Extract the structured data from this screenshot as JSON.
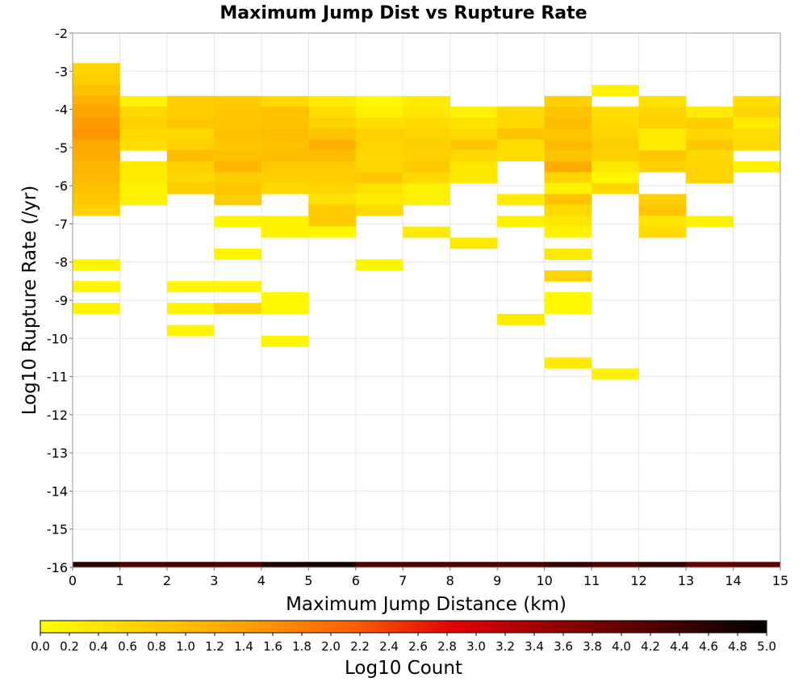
{
  "chart_data": {
    "type": "heatmap",
    "title": "Maximum Jump Dist vs Rupture Rate",
    "xlabel": "Maximum Jump Distance (km)",
    "ylabel": "Log10 Rupture Rate (/yr)",
    "xlim": [
      0,
      15
    ],
    "ylim": [
      -16,
      -2
    ],
    "x_ticks": [
      0,
      1,
      2,
      3,
      4,
      5,
      6,
      7,
      8,
      9,
      10,
      11,
      12,
      13,
      14,
      15
    ],
    "y_ticks": [
      -2,
      -3,
      -4,
      -5,
      -6,
      -7,
      -8,
      -9,
      -10,
      -11,
      -12,
      -13,
      -14,
      -15,
      -16
    ],
    "x_bin_width": 1,
    "y_bin_height": 0.286,
    "grid": true,
    "colorbar": {
      "label": "Log10 Count",
      "min": 0.0,
      "max": 5.0,
      "position": "bottom",
      "ticks": [
        "0.0",
        "0.2",
        "0.4",
        "0.6",
        "0.8",
        "1.0",
        "1.2",
        "1.4",
        "1.6",
        "1.8",
        "2.0",
        "2.2",
        "2.4",
        "2.6",
        "2.8",
        "3.0",
        "3.2",
        "3.4",
        "3.6",
        "3.8",
        "4.0",
        "4.2",
        "4.4",
        "4.6",
        "4.8",
        "5.0"
      ],
      "colors": [
        "#ffff00",
        "#ffd000",
        "#ffa000",
        "#ff6000",
        "#e00000",
        "#900000",
        "#4a0000",
        "#000000"
      ]
    },
    "cells": [
      {
        "x": 0,
        "y": -2.93,
        "v": 0.65
      },
      {
        "x": 0,
        "y": -3.21,
        "v": 0.75
      },
      {
        "x": 0,
        "y": -3.5,
        "v": 0.95
      },
      {
        "x": 0,
        "y": -3.79,
        "v": 1.2
      },
      {
        "x": 0,
        "y": -4.07,
        "v": 1.35
      },
      {
        "x": 0,
        "y": -4.36,
        "v": 1.5
      },
      {
        "x": 0,
        "y": -4.64,
        "v": 1.55
      },
      {
        "x": 0,
        "y": -4.93,
        "v": 1.3
      },
      {
        "x": 0,
        "y": -5.21,
        "v": 1.25
      },
      {
        "x": 0,
        "y": -5.5,
        "v": 1.1
      },
      {
        "x": 0,
        "y": -5.79,
        "v": 1.05
      },
      {
        "x": 0,
        "y": -6.07,
        "v": 0.95
      },
      {
        "x": 0,
        "y": -6.36,
        "v": 0.85
      },
      {
        "x": 0,
        "y": -6.64,
        "v": 0.7
      },
      {
        "x": 0,
        "y": -8.07,
        "v": 0.15
      },
      {
        "x": 0,
        "y": -8.64,
        "v": 0.15
      },
      {
        "x": 0,
        "y": -9.21,
        "v": 0.15
      },
      {
        "x": 1,
        "y": -3.79,
        "v": 0.2
      },
      {
        "x": 1,
        "y": -4.07,
        "v": 0.6
      },
      {
        "x": 1,
        "y": -4.36,
        "v": 0.7
      },
      {
        "x": 1,
        "y": -4.64,
        "v": 0.6
      },
      {
        "x": 1,
        "y": -4.93,
        "v": 0.5
      },
      {
        "x": 1,
        "y": -5.5,
        "v": 0.3
      },
      {
        "x": 1,
        "y": -5.79,
        "v": 0.3
      },
      {
        "x": 1,
        "y": -6.07,
        "v": 0.2
      },
      {
        "x": 1,
        "y": -6.36,
        "v": 0.2
      },
      {
        "x": 2,
        "y": -3.79,
        "v": 0.75
      },
      {
        "x": 2,
        "y": -4.07,
        "v": 0.75
      },
      {
        "x": 2,
        "y": -4.36,
        "v": 0.85
      },
      {
        "x": 2,
        "y": -4.64,
        "v": 0.6
      },
      {
        "x": 2,
        "y": -4.93,
        "v": 0.7
      },
      {
        "x": 2,
        "y": -5.21,
        "v": 1.0
      },
      {
        "x": 2,
        "y": -5.5,
        "v": 0.7
      },
      {
        "x": 2,
        "y": -5.79,
        "v": 0.6
      },
      {
        "x": 2,
        "y": -6.07,
        "v": 0.75
      },
      {
        "x": 2,
        "y": -8.64,
        "v": 0.15
      },
      {
        "x": 2,
        "y": -9.21,
        "v": 0.15
      },
      {
        "x": 2,
        "y": -9.79,
        "v": 0.15
      },
      {
        "x": 3,
        "y": -3.79,
        "v": 0.8
      },
      {
        "x": 3,
        "y": -4.07,
        "v": 0.85
      },
      {
        "x": 3,
        "y": -4.36,
        "v": 0.85
      },
      {
        "x": 3,
        "y": -4.64,
        "v": 0.95
      },
      {
        "x": 3,
        "y": -4.93,
        "v": 0.85
      },
      {
        "x": 3,
        "y": -5.21,
        "v": 0.95
      },
      {
        "x": 3,
        "y": -5.5,
        "v": 1.1
      },
      {
        "x": 3,
        "y": -5.79,
        "v": 0.75
      },
      {
        "x": 3,
        "y": -6.07,
        "v": 0.85
      },
      {
        "x": 3,
        "y": -6.36,
        "v": 0.75
      },
      {
        "x": 3,
        "y": -6.93,
        "v": 0.15
      },
      {
        "x": 3,
        "y": -7.79,
        "v": 0.15
      },
      {
        "x": 3,
        "y": -8.64,
        "v": 0.15
      },
      {
        "x": 3,
        "y": -9.21,
        "v": 0.6
      },
      {
        "x": 4,
        "y": -3.79,
        "v": 0.6
      },
      {
        "x": 4,
        "y": -4.07,
        "v": 0.95
      },
      {
        "x": 4,
        "y": -4.36,
        "v": 0.95
      },
      {
        "x": 4,
        "y": -4.64,
        "v": 1.0
      },
      {
        "x": 4,
        "y": -4.93,
        "v": 0.95
      },
      {
        "x": 4,
        "y": -5.21,
        "v": 1.0
      },
      {
        "x": 4,
        "y": -5.5,
        "v": 0.8
      },
      {
        "x": 4,
        "y": -5.79,
        "v": 0.75
      },
      {
        "x": 4,
        "y": -6.07,
        "v": 0.6
      },
      {
        "x": 4,
        "y": -6.93,
        "v": 0.2
      },
      {
        "x": 4,
        "y": -7.21,
        "v": 0.2
      },
      {
        "x": 4,
        "y": -8.93,
        "v": 0.1
      },
      {
        "x": 4,
        "y": -9.21,
        "v": 0.1
      },
      {
        "x": 4,
        "y": -10.07,
        "v": 0.15
      },
      {
        "x": 5,
        "y": -3.79,
        "v": 0.3
      },
      {
        "x": 5,
        "y": -4.07,
        "v": 0.5
      },
      {
        "x": 5,
        "y": -4.36,
        "v": 0.7
      },
      {
        "x": 5,
        "y": -4.64,
        "v": 0.9
      },
      {
        "x": 5,
        "y": -4.93,
        "v": 1.2
      },
      {
        "x": 5,
        "y": -5.21,
        "v": 1.0
      },
      {
        "x": 5,
        "y": -5.5,
        "v": 0.8
      },
      {
        "x": 5,
        "y": -5.79,
        "v": 0.75
      },
      {
        "x": 5,
        "y": -6.07,
        "v": 0.65
      },
      {
        "x": 5,
        "y": -6.36,
        "v": 0.45
      },
      {
        "x": 5,
        "y": -6.64,
        "v": 0.8
      },
      {
        "x": 5,
        "y": -6.93,
        "v": 0.8
      },
      {
        "x": 5,
        "y": -7.21,
        "v": 0.15
      },
      {
        "x": 6,
        "y": -3.79,
        "v": 0.1
      },
      {
        "x": 6,
        "y": -4.07,
        "v": 0.2
      },
      {
        "x": 6,
        "y": -4.36,
        "v": 0.5
      },
      {
        "x": 6,
        "y": -4.64,
        "v": 0.7
      },
      {
        "x": 6,
        "y": -4.93,
        "v": 0.65
      },
      {
        "x": 6,
        "y": -5.21,
        "v": 0.6
      },
      {
        "x": 6,
        "y": -5.5,
        "v": 0.65
      },
      {
        "x": 6,
        "y": -5.79,
        "v": 0.85
      },
      {
        "x": 6,
        "y": -6.07,
        "v": 0.45
      },
      {
        "x": 6,
        "y": -6.36,
        "v": 0.3
      },
      {
        "x": 6,
        "y": -6.64,
        "v": 0.55
      },
      {
        "x": 6,
        "y": -8.07,
        "v": 0.15
      },
      {
        "x": 7,
        "y": -3.79,
        "v": 0.3
      },
      {
        "x": 7,
        "y": -4.07,
        "v": 0.4
      },
      {
        "x": 7,
        "y": -4.36,
        "v": 0.55
      },
      {
        "x": 7,
        "y": -4.64,
        "v": 0.65
      },
      {
        "x": 7,
        "y": -4.93,
        "v": 0.75
      },
      {
        "x": 7,
        "y": -5.21,
        "v": 0.7
      },
      {
        "x": 7,
        "y": -5.5,
        "v": 0.8
      },
      {
        "x": 7,
        "y": -5.79,
        "v": 0.6
      },
      {
        "x": 7,
        "y": -6.07,
        "v": 0.25
      },
      {
        "x": 7,
        "y": -6.36,
        "v": 0.25
      },
      {
        "x": 7,
        "y": -7.21,
        "v": 0.3
      },
      {
        "x": 8,
        "y": -4.07,
        "v": 0.2
      },
      {
        "x": 8,
        "y": -4.36,
        "v": 0.45
      },
      {
        "x": 8,
        "y": -4.64,
        "v": 0.55
      },
      {
        "x": 8,
        "y": -4.93,
        "v": 0.85
      },
      {
        "x": 8,
        "y": -5.21,
        "v": 0.6
      },
      {
        "x": 8,
        "y": -5.5,
        "v": 0.35
      },
      {
        "x": 8,
        "y": -5.79,
        "v": 0.35
      },
      {
        "x": 8,
        "y": -7.5,
        "v": 0.3
      },
      {
        "x": 9,
        "y": -4.07,
        "v": 0.6
      },
      {
        "x": 9,
        "y": -4.36,
        "v": 0.6
      },
      {
        "x": 9,
        "y": -4.64,
        "v": 0.9
      },
      {
        "x": 9,
        "y": -4.93,
        "v": 0.5
      },
      {
        "x": 9,
        "y": -5.21,
        "v": 0.5
      },
      {
        "x": 9,
        "y": -6.36,
        "v": 0.3
      },
      {
        "x": 9,
        "y": -6.93,
        "v": 0.2
      },
      {
        "x": 9,
        "y": -9.5,
        "v": 0.3
      },
      {
        "x": 10,
        "y": -3.79,
        "v": 0.7
      },
      {
        "x": 10,
        "y": -4.07,
        "v": 0.9
      },
      {
        "x": 10,
        "y": -4.36,
        "v": 1.0
      },
      {
        "x": 10,
        "y": -4.64,
        "v": 0.9
      },
      {
        "x": 10,
        "y": -4.93,
        "v": 1.05
      },
      {
        "x": 10,
        "y": -5.21,
        "v": 0.9
      },
      {
        "x": 10,
        "y": -5.5,
        "v": 1.25
      },
      {
        "x": 10,
        "y": -5.79,
        "v": 0.65
      },
      {
        "x": 10,
        "y": -6.07,
        "v": 0.2
      },
      {
        "x": 10,
        "y": -6.36,
        "v": 0.9
      },
      {
        "x": 10,
        "y": -6.64,
        "v": 0.55
      },
      {
        "x": 10,
        "y": -6.93,
        "v": 0.35
      },
      {
        "x": 10,
        "y": -7.21,
        "v": 0.2
      },
      {
        "x": 10,
        "y": -7.79,
        "v": 0.3
      },
      {
        "x": 10,
        "y": -8.36,
        "v": 0.65
      },
      {
        "x": 10,
        "y": -8.93,
        "v": 0.1
      },
      {
        "x": 10,
        "y": -9.21,
        "v": 0.1
      },
      {
        "x": 10,
        "y": -10.64,
        "v": 0.3
      },
      {
        "x": 11,
        "y": -3.5,
        "v": 0.2
      },
      {
        "x": 11,
        "y": -4.07,
        "v": 0.5
      },
      {
        "x": 11,
        "y": -4.36,
        "v": 0.55
      },
      {
        "x": 11,
        "y": -4.64,
        "v": 0.65
      },
      {
        "x": 11,
        "y": -4.93,
        "v": 0.75
      },
      {
        "x": 11,
        "y": -5.21,
        "v": 0.7
      },
      {
        "x": 11,
        "y": -5.5,
        "v": 0.35
      },
      {
        "x": 11,
        "y": -5.79,
        "v": 0.15
      },
      {
        "x": 11,
        "y": -6.07,
        "v": 0.6
      },
      {
        "x": 11,
        "y": -10.93,
        "v": 0.2
      },
      {
        "x": 12,
        "y": -3.79,
        "v": 0.45
      },
      {
        "x": 12,
        "y": -4.07,
        "v": 0.65
      },
      {
        "x": 12,
        "y": -4.36,
        "v": 0.7
      },
      {
        "x": 12,
        "y": -4.64,
        "v": 0.3
      },
      {
        "x": 12,
        "y": -4.93,
        "v": 0.3
      },
      {
        "x": 12,
        "y": -5.21,
        "v": 0.85
      },
      {
        "x": 12,
        "y": -5.5,
        "v": 0.7
      },
      {
        "x": 12,
        "y": -6.36,
        "v": 0.7
      },
      {
        "x": 12,
        "y": -6.64,
        "v": 0.85
      },
      {
        "x": 12,
        "y": -6.93,
        "v": 0.4
      },
      {
        "x": 12,
        "y": -7.21,
        "v": 0.55
      },
      {
        "x": 13,
        "y": -4.07,
        "v": 0.3
      },
      {
        "x": 13,
        "y": -4.36,
        "v": 0.75
      },
      {
        "x": 13,
        "y": -4.64,
        "v": 0.6
      },
      {
        "x": 13,
        "y": -4.93,
        "v": 0.85
      },
      {
        "x": 13,
        "y": -5.21,
        "v": 0.6
      },
      {
        "x": 13,
        "y": -5.5,
        "v": 0.65
      },
      {
        "x": 13,
        "y": -5.79,
        "v": 0.65
      },
      {
        "x": 13,
        "y": -6.93,
        "v": 0.2
      },
      {
        "x": 14,
        "y": -3.79,
        "v": 0.5
      },
      {
        "x": 14,
        "y": -4.07,
        "v": 0.65
      },
      {
        "x": 14,
        "y": -4.36,
        "v": 0.3
      },
      {
        "x": 14,
        "y": -4.64,
        "v": 0.5
      },
      {
        "x": 14,
        "y": -4.93,
        "v": 0.55
      },
      {
        "x": 14,
        "y": -5.5,
        "v": 0.2
      }
    ],
    "floor_row": {
      "y": -16,
      "values": [
        4.6,
        4.2,
        4.3,
        4.2,
        4.7,
        4.8,
        4.2,
        4.2,
        4.2,
        4.2,
        4.5,
        4.2,
        4.5,
        4.0,
        4.1
      ]
    }
  }
}
